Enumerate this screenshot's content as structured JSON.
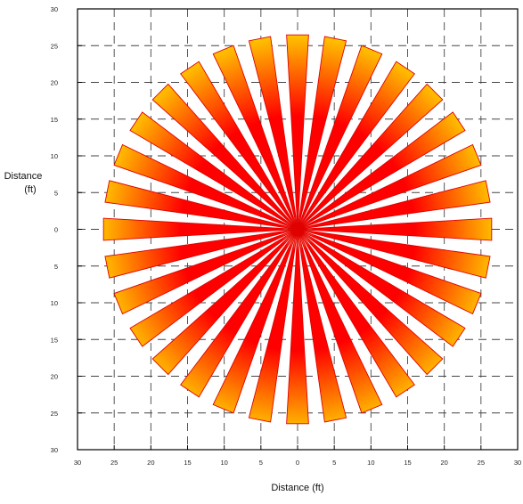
{
  "chart_data": {
    "type": "polar-spokes",
    "xlabel": "Distance (ft)",
    "ylabel_line1": "Distance",
    "ylabel_line2": "(ft)",
    "xlim": [
      -30,
      30
    ],
    "ylim": [
      -30,
      30
    ],
    "ticks": [
      30,
      25,
      20,
      15,
      10,
      5,
      0,
      5,
      10,
      15,
      20,
      25,
      30
    ],
    "tick_values": [
      -30,
      -25,
      -20,
      -15,
      -10,
      -5,
      0,
      5,
      10,
      15,
      20,
      25,
      30
    ],
    "grid": true,
    "series": [
      {
        "spoke_count": 32,
        "spoke_angles_deg": [
          0,
          11.25,
          22.5,
          33.75,
          45,
          56.25,
          67.5,
          78.75,
          90,
          101.25,
          112.5,
          123.75,
          135,
          146.25,
          157.5,
          168.75,
          180,
          191.25,
          202.5,
          213.75,
          225,
          236.25,
          247.5,
          258.75,
          270,
          281.25,
          292.5,
          303.75,
          315,
          326.25,
          337.5,
          348.75
        ],
        "spoke_length_ft": 26.5,
        "spoke_angular_width_deg": 6.5
      }
    ],
    "colors": {
      "inner": "#ff0000",
      "outer": "#ffe800",
      "outline": "#e00000",
      "center": "#ffe9a0"
    }
  }
}
